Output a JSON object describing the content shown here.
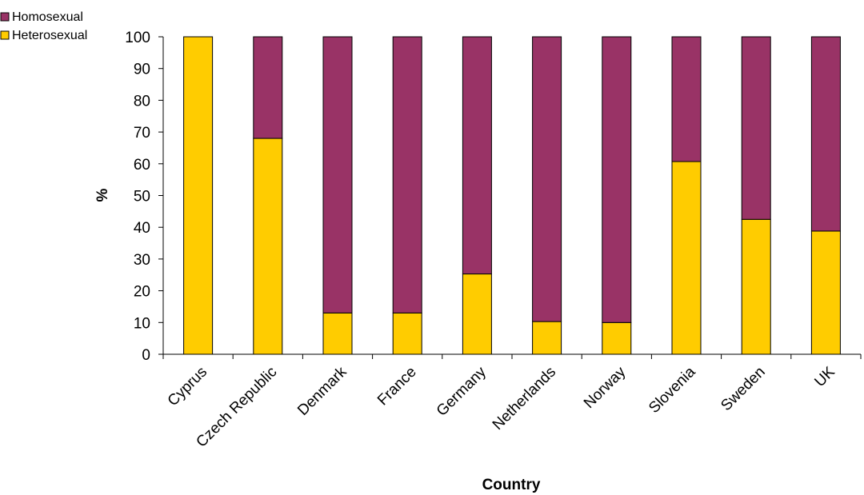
{
  "chart_data": {
    "type": "bar",
    "stacked": true,
    "percent": true,
    "categories": [
      "Cyprus",
      "Czech Republic",
      "Denmark",
      "France",
      "Germany",
      "Netherlands",
      "Norway",
      "Slovenia",
      "Sweden",
      "UK"
    ],
    "series": [
      {
        "name": "Heterosexual",
        "color": "#ffcc00",
        "values": [
          100,
          68,
          13,
          13,
          25.3,
          10.3,
          10,
          60.7,
          42.5,
          38.8
        ]
      },
      {
        "name": "Homosexual",
        "color": "#993366",
        "values": [
          0,
          32,
          87,
          87,
          74.7,
          89.7,
          90,
          39.3,
          57.5,
          61.2
        ]
      }
    ],
    "xlabel": "Country",
    "ylabel": "%",
    "ylim": [
      0,
      100
    ],
    "yticks": [
      0,
      10,
      20,
      30,
      40,
      50,
      60,
      70,
      80,
      90,
      100
    ],
    "grid": false,
    "legend": {
      "placement": "top-left",
      "entries": [
        {
          "name": "Homosexual",
          "color": "#993366"
        },
        {
          "name": "Heterosexual",
          "color": "#ffcc00"
        }
      ]
    }
  }
}
